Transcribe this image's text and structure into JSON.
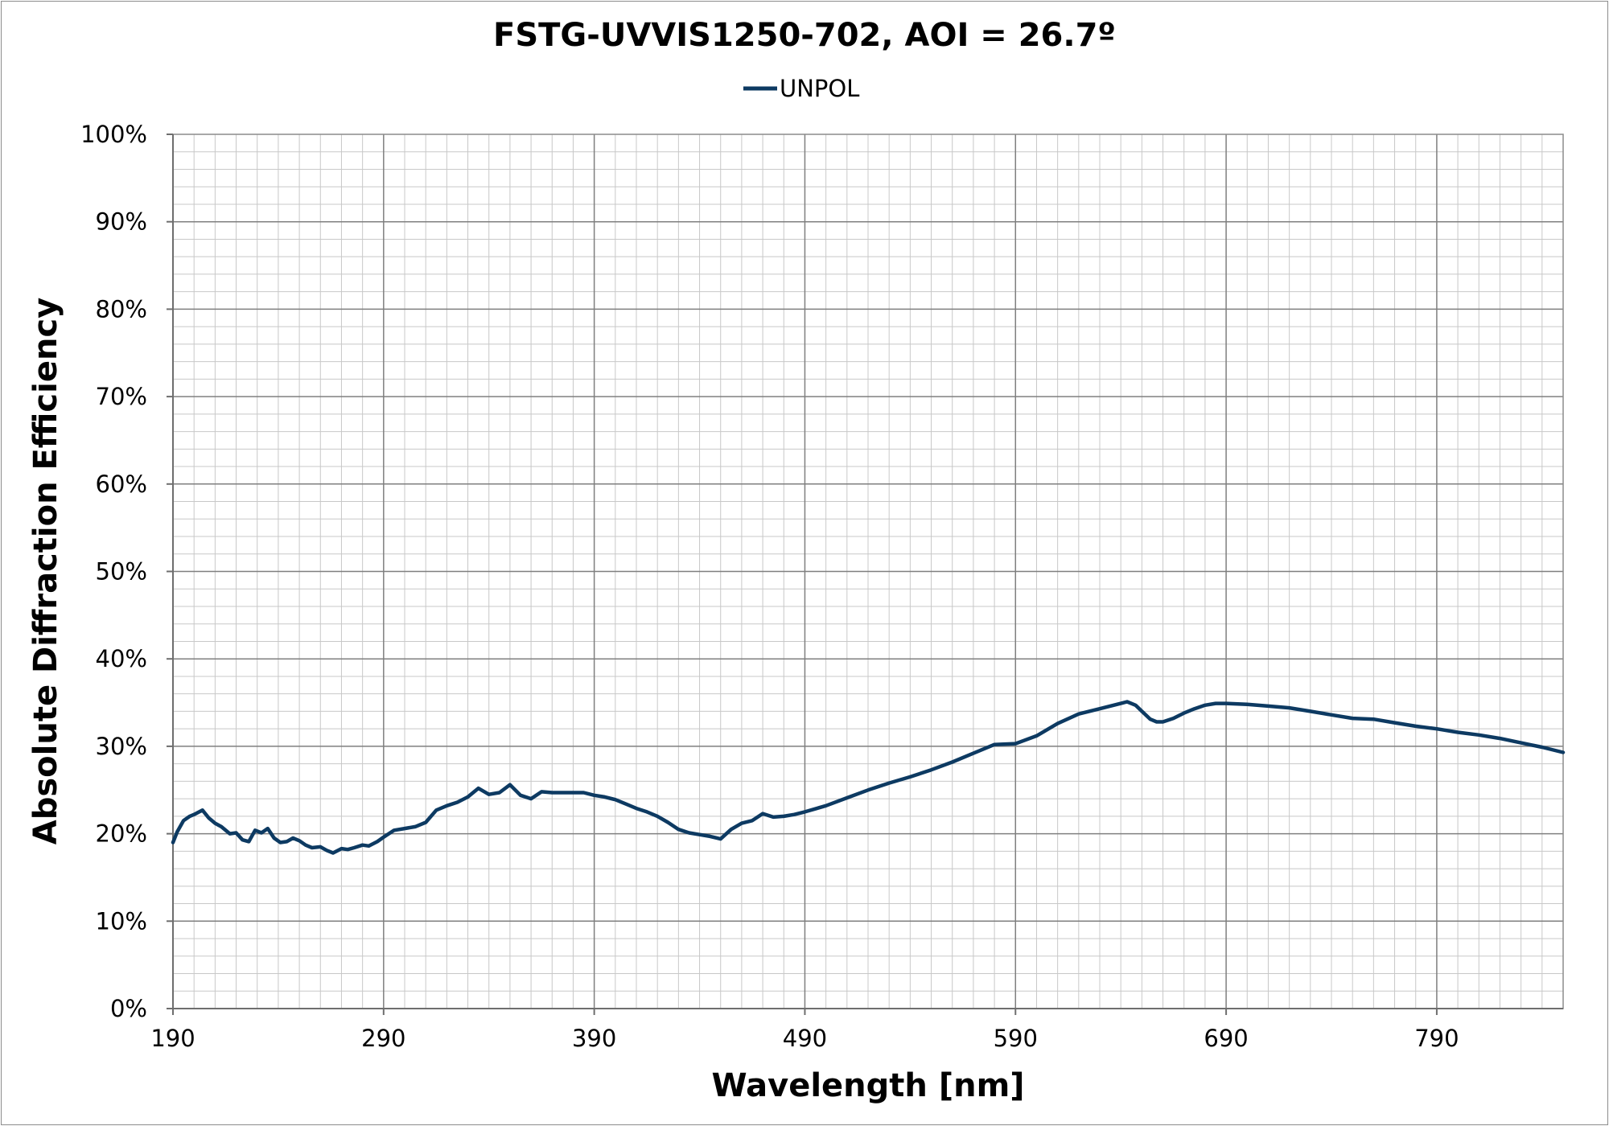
{
  "chart_data": {
    "type": "line",
    "title": "FSTG-UVVIS1250-702, AOI = 26.7º",
    "xlabel": "Wavelength [nm]",
    "ylabel": "Absolute Diffraction Efficiency",
    "xlim": [
      190,
      850
    ],
    "ylim": [
      0,
      100
    ],
    "x_ticks": [
      190,
      290,
      390,
      490,
      590,
      690,
      790
    ],
    "x_tick_labels": [
      "190",
      "290",
      "390",
      "490",
      "590",
      "690",
      "790"
    ],
    "y_ticks": [
      0,
      10,
      20,
      30,
      40,
      50,
      60,
      70,
      80,
      90,
      100
    ],
    "y_tick_labels": [
      "0%",
      "10%",
      "20%",
      "30%",
      "40%",
      "50%",
      "60%",
      "70%",
      "80%",
      "90%",
      "100%"
    ],
    "x_minor_step": 10,
    "y_minor_step": 2,
    "grid": true,
    "legend_position": "top-center",
    "series": [
      {
        "name": "UNPOL",
        "color": "#0d3a62",
        "x": [
          190,
          192,
          195,
          198,
          200,
          204,
          207,
          210,
          213,
          217,
          220,
          223,
          226,
          229,
          232,
          235,
          238,
          241,
          244,
          247,
          250,
          253,
          256,
          260,
          263,
          266,
          270,
          273,
          276,
          280,
          283,
          287,
          290,
          295,
          300,
          305,
          310,
          315,
          320,
          325,
          330,
          335,
          340,
          345,
          350,
          355,
          360,
          365,
          370,
          375,
          380,
          385,
          390,
          395,
          400,
          405,
          410,
          415,
          420,
          425,
          430,
          435,
          440,
          445,
          450,
          455,
          460,
          465,
          470,
          475,
          480,
          485,
          490,
          500,
          510,
          520,
          530,
          540,
          550,
          560,
          570,
          580,
          590,
          600,
          610,
          620,
          630,
          640,
          643,
          647,
          650,
          654,
          657,
          660,
          665,
          670,
          675,
          680,
          685,
          690,
          700,
          710,
          720,
          730,
          740,
          750,
          760,
          770,
          780,
          790,
          800,
          810,
          820,
          830,
          840,
          850
        ],
        "y": [
          19.0,
          20.2,
          21.5,
          22.0,
          22.2,
          22.7,
          21.8,
          21.2,
          20.8,
          20.0,
          20.1,
          19.3,
          19.1,
          20.4,
          20.1,
          20.6,
          19.5,
          19.0,
          19.1,
          19.5,
          19.2,
          18.7,
          18.4,
          18.5,
          18.1,
          17.8,
          18.3,
          18.2,
          18.4,
          18.7,
          18.6,
          19.1,
          19.6,
          20.4,
          20.6,
          20.8,
          21.3,
          22.7,
          23.2,
          23.6,
          24.2,
          25.2,
          24.5,
          24.7,
          25.6,
          24.4,
          24.0,
          24.8,
          24.7,
          24.7,
          24.7,
          24.7,
          24.4,
          24.2,
          23.9,
          23.4,
          22.9,
          22.5,
          22.0,
          21.3,
          20.5,
          20.1,
          19.9,
          19.7,
          19.4,
          20.5,
          21.2,
          21.5,
          22.3,
          21.9,
          22.0,
          22.2,
          22.5,
          23.2,
          24.1,
          25.0,
          25.8,
          26.5,
          27.3,
          28.2,
          29.2,
          30.2,
          30.3,
          31.2,
          32.6,
          33.7,
          34.3,
          34.9,
          35.1,
          34.7,
          34.0,
          33.1,
          32.8,
          32.8,
          33.2,
          33.8,
          34.3,
          34.7,
          34.9,
          34.9,
          34.8,
          34.6,
          34.4,
          34.0,
          33.6,
          33.2,
          33.1,
          32.7,
          32.3,
          32.0,
          31.6,
          31.3,
          30.9,
          30.4,
          29.9,
          29.3
        ]
      }
    ]
  }
}
